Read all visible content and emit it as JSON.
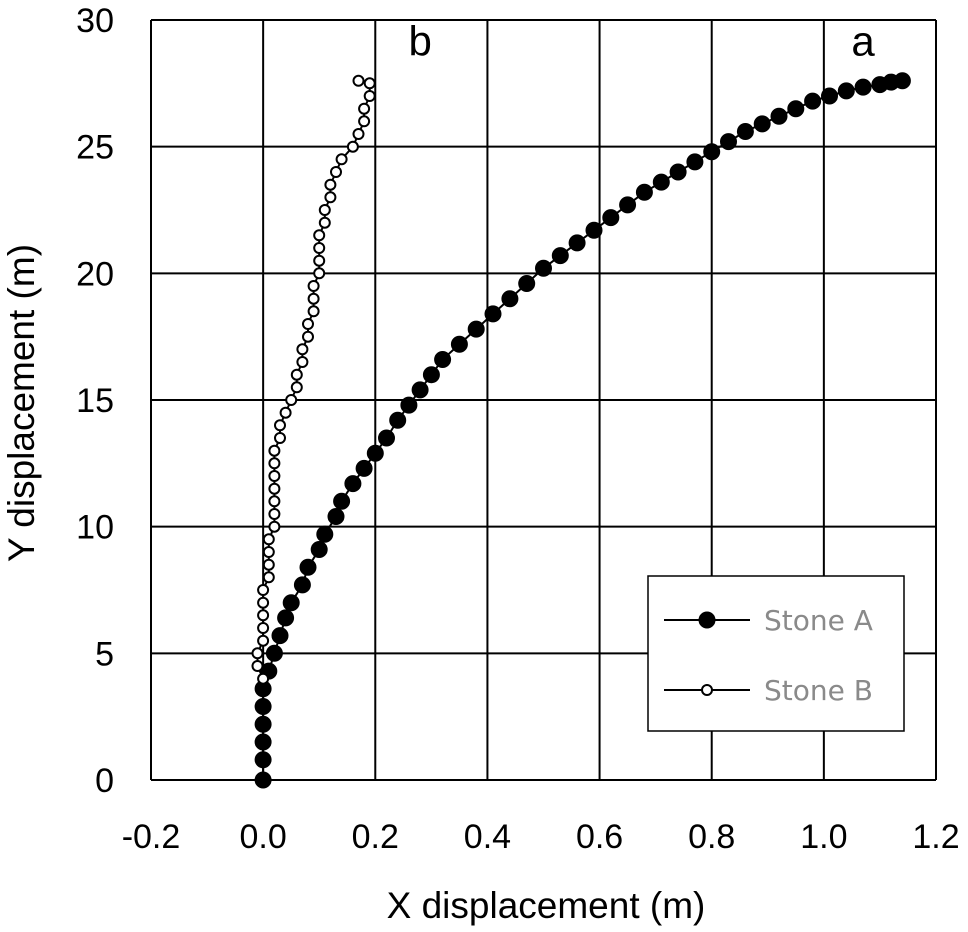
{
  "chart_data": {
    "type": "scatter",
    "title": "",
    "xlabel": "X displacement (m)",
    "ylabel": "Y displacement (m)",
    "xlim": [
      -0.2,
      1.2
    ],
    "ylim": [
      0,
      30
    ],
    "xticks": [
      "-0.2",
      "0.0",
      "0.2",
      "0.4",
      "0.6",
      "0.8",
      "1.0",
      "1.2"
    ],
    "yticks": [
      "0",
      "5",
      "10",
      "15",
      "20",
      "25",
      "30"
    ],
    "grid": true,
    "legend_position": "bottom-right",
    "annotations": [
      {
        "text": "a",
        "x": 1.07,
        "y": 28.6
      },
      {
        "text": "b",
        "x": 0.28,
        "y": 28.6
      }
    ],
    "series": [
      {
        "name": "Stone A",
        "marker": "filled-circle",
        "color": "#000000",
        "points": [
          [
            0.0,
            0.0
          ],
          [
            0.0,
            0.8
          ],
          [
            0.0,
            1.5
          ],
          [
            0.0,
            2.2
          ],
          [
            0.0,
            2.9
          ],
          [
            0.0,
            3.6
          ],
          [
            0.01,
            4.3
          ],
          [
            0.02,
            5.0
          ],
          [
            0.03,
            5.7
          ],
          [
            0.04,
            6.4
          ],
          [
            0.05,
            7.0
          ],
          [
            0.07,
            7.7
          ],
          [
            0.08,
            8.4
          ],
          [
            0.1,
            9.1
          ],
          [
            0.11,
            9.7
          ],
          [
            0.13,
            10.4
          ],
          [
            0.14,
            11.0
          ],
          [
            0.16,
            11.7
          ],
          [
            0.18,
            12.3
          ],
          [
            0.2,
            12.9
          ],
          [
            0.22,
            13.5
          ],
          [
            0.24,
            14.2
          ],
          [
            0.26,
            14.8
          ],
          [
            0.28,
            15.4
          ],
          [
            0.3,
            16.0
          ],
          [
            0.32,
            16.6
          ],
          [
            0.35,
            17.2
          ],
          [
            0.38,
            17.8
          ],
          [
            0.41,
            18.4
          ],
          [
            0.44,
            19.0
          ],
          [
            0.47,
            19.6
          ],
          [
            0.5,
            20.2
          ],
          [
            0.53,
            20.7
          ],
          [
            0.56,
            21.2
          ],
          [
            0.59,
            21.7
          ],
          [
            0.62,
            22.2
          ],
          [
            0.65,
            22.7
          ],
          [
            0.68,
            23.2
          ],
          [
            0.71,
            23.6
          ],
          [
            0.74,
            24.0
          ],
          [
            0.77,
            24.4
          ],
          [
            0.8,
            24.8
          ],
          [
            0.83,
            25.2
          ],
          [
            0.86,
            25.6
          ],
          [
            0.89,
            25.9
          ],
          [
            0.92,
            26.2
          ],
          [
            0.95,
            26.5
          ],
          [
            0.98,
            26.8
          ],
          [
            1.01,
            27.0
          ],
          [
            1.04,
            27.2
          ],
          [
            1.07,
            27.35
          ],
          [
            1.1,
            27.45
          ],
          [
            1.12,
            27.55
          ],
          [
            1.14,
            27.6
          ]
        ]
      },
      {
        "name": "Stone B",
        "marker": "open-circle",
        "color": "#000000",
        "points": [
          [
            0.0,
            4.0
          ],
          [
            -0.01,
            4.5
          ],
          [
            -0.01,
            5.0
          ],
          [
            0.0,
            5.5
          ],
          [
            0.0,
            6.0
          ],
          [
            0.0,
            6.5
          ],
          [
            0.0,
            7.0
          ],
          [
            0.0,
            7.5
          ],
          [
            0.01,
            8.0
          ],
          [
            0.01,
            8.5
          ],
          [
            0.01,
            9.0
          ],
          [
            0.01,
            9.5
          ],
          [
            0.02,
            10.0
          ],
          [
            0.02,
            10.5
          ],
          [
            0.02,
            11.0
          ],
          [
            0.02,
            11.5
          ],
          [
            0.02,
            12.0
          ],
          [
            0.02,
            12.5
          ],
          [
            0.02,
            13.0
          ],
          [
            0.03,
            13.5
          ],
          [
            0.03,
            14.0
          ],
          [
            0.04,
            14.5
          ],
          [
            0.05,
            15.0
          ],
          [
            0.06,
            15.5
          ],
          [
            0.06,
            16.0
          ],
          [
            0.07,
            16.5
          ],
          [
            0.07,
            17.0
          ],
          [
            0.08,
            17.5
          ],
          [
            0.08,
            18.0
          ],
          [
            0.09,
            18.5
          ],
          [
            0.09,
            19.0
          ],
          [
            0.09,
            19.5
          ],
          [
            0.1,
            20.0
          ],
          [
            0.1,
            20.5
          ],
          [
            0.1,
            21.0
          ],
          [
            0.1,
            21.5
          ],
          [
            0.11,
            22.0
          ],
          [
            0.11,
            22.5
          ],
          [
            0.12,
            23.0
          ],
          [
            0.12,
            23.5
          ],
          [
            0.13,
            24.0
          ],
          [
            0.14,
            24.5
          ],
          [
            0.16,
            25.0
          ],
          [
            0.17,
            25.5
          ],
          [
            0.18,
            26.0
          ],
          [
            0.18,
            26.5
          ],
          [
            0.19,
            27.0
          ],
          [
            0.19,
            27.5
          ],
          [
            0.17,
            27.6
          ]
        ]
      }
    ]
  }
}
